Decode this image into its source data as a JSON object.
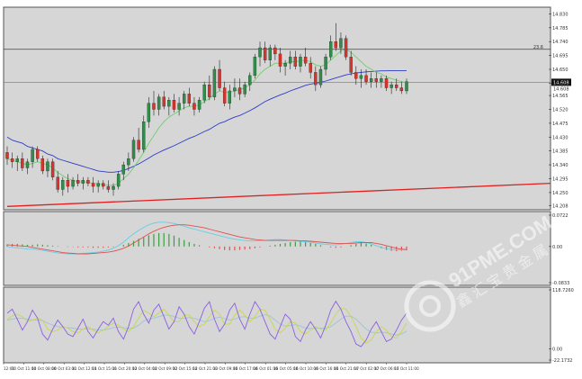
{
  "chart_data": [
    {
      "type": "candlestick",
      "panel": "main price",
      "y_ticks": [
        "14.830",
        "14.785",
        "14.740",
        "14.695",
        "14.650",
        "14.605",
        "14.565",
        "14.520",
        "14.475",
        "14.430",
        "14.385",
        "14.340",
        "14.295",
        "14.250",
        "14.208"
      ],
      "ylim": [
        14.2,
        14.84
      ],
      "hline_label": "23.6",
      "hline_value": 14.715,
      "last_price_label": "14.608",
      "last_price_value": 14.608,
      "secondary_price_label": "14.608",
      "ohlc": [
        [
          14.38,
          14.4,
          14.34,
          14.36
        ],
        [
          14.36,
          14.38,
          14.33,
          14.35
        ],
        [
          14.35,
          14.37,
          14.32,
          14.36
        ],
        [
          14.36,
          14.38,
          14.32,
          14.33
        ],
        [
          14.33,
          14.36,
          14.31,
          14.35
        ],
        [
          14.35,
          14.4,
          14.33,
          14.39
        ],
        [
          14.39,
          14.4,
          14.35,
          14.36
        ],
        [
          14.36,
          14.37,
          14.31,
          14.32
        ],
        [
          14.32,
          14.36,
          14.3,
          14.35
        ],
        [
          14.35,
          14.36,
          14.29,
          14.3
        ],
        [
          14.3,
          14.32,
          14.25,
          14.26
        ],
        [
          14.26,
          14.3,
          14.24,
          14.29
        ],
        [
          14.29,
          14.31,
          14.25,
          14.27
        ],
        [
          14.27,
          14.3,
          14.26,
          14.29
        ],
        [
          14.29,
          14.31,
          14.27,
          14.28
        ],
        [
          14.28,
          14.3,
          14.26,
          14.29
        ],
        [
          14.29,
          14.3,
          14.27,
          14.28
        ],
        [
          14.28,
          14.3,
          14.25,
          14.27
        ],
        [
          14.27,
          14.29,
          14.25,
          14.28
        ],
        [
          14.28,
          14.29,
          14.26,
          14.27
        ],
        [
          14.27,
          14.29,
          14.25,
          14.26
        ],
        [
          14.26,
          14.28,
          14.24,
          14.27
        ],
        [
          14.27,
          14.32,
          14.26,
          14.31
        ],
        [
          14.31,
          14.35,
          14.29,
          14.34
        ],
        [
          14.34,
          14.38,
          14.32,
          14.36
        ],
        [
          14.36,
          14.43,
          14.35,
          14.42
        ],
        [
          14.42,
          14.46,
          14.38,
          14.39
        ],
        [
          14.39,
          14.5,
          14.38,
          14.48
        ],
        [
          14.48,
          14.56,
          14.46,
          14.54
        ],
        [
          14.54,
          14.58,
          14.5,
          14.52
        ],
        [
          14.52,
          14.57,
          14.5,
          14.56
        ],
        [
          14.56,
          14.58,
          14.52,
          14.53
        ],
        [
          14.53,
          14.56,
          14.5,
          14.55
        ],
        [
          14.55,
          14.57,
          14.51,
          14.52
        ],
        [
          14.52,
          14.56,
          14.5,
          14.54
        ],
        [
          14.54,
          14.58,
          14.52,
          14.57
        ],
        [
          14.57,
          14.59,
          14.53,
          14.54
        ],
        [
          14.54,
          14.56,
          14.5,
          14.52
        ],
        [
          14.52,
          14.56,
          14.51,
          14.55
        ],
        [
          14.55,
          14.61,
          14.54,
          14.6
        ],
        [
          14.6,
          14.63,
          14.55,
          14.56
        ],
        [
          14.56,
          14.66,
          14.55,
          14.65
        ],
        [
          14.65,
          14.68,
          14.58,
          14.59
        ],
        [
          14.59,
          14.61,
          14.53,
          14.54
        ],
        [
          14.54,
          14.6,
          14.52,
          14.58
        ],
        [
          14.58,
          14.62,
          14.56,
          14.59
        ],
        [
          14.59,
          14.62,
          14.55,
          14.57
        ],
        [
          14.57,
          14.61,
          14.56,
          14.6
        ],
        [
          14.6,
          14.64,
          14.58,
          14.63
        ],
        [
          14.63,
          14.7,
          14.62,
          14.69
        ],
        [
          14.69,
          14.74,
          14.66,
          14.72
        ],
        [
          14.72,
          14.74,
          14.67,
          14.68
        ],
        [
          14.68,
          14.73,
          14.66,
          14.72
        ],
        [
          14.72,
          14.73,
          14.68,
          14.7
        ],
        [
          14.7,
          14.72,
          14.64,
          14.66
        ],
        [
          14.66,
          14.68,
          14.63,
          14.67
        ],
        [
          14.67,
          14.71,
          14.65,
          14.69
        ],
        [
          14.69,
          14.71,
          14.65,
          14.66
        ],
        [
          14.66,
          14.7,
          14.64,
          14.69
        ],
        [
          14.69,
          14.72,
          14.66,
          14.67
        ],
        [
          14.67,
          14.69,
          14.62,
          14.64
        ],
        [
          14.64,
          14.66,
          14.58,
          14.6
        ],
        [
          14.6,
          14.66,
          14.59,
          14.65
        ],
        [
          14.65,
          14.7,
          14.63,
          14.69
        ],
        [
          14.69,
          14.76,
          14.68,
          14.74
        ],
        [
          14.74,
          14.8,
          14.71,
          14.72
        ],
        [
          14.72,
          14.77,
          14.7,
          14.75
        ],
        [
          14.75,
          14.76,
          14.68,
          14.69
        ],
        [
          14.69,
          14.71,
          14.63,
          14.64
        ],
        [
          14.64,
          14.66,
          14.6,
          14.62
        ],
        [
          14.62,
          14.65,
          14.59,
          14.63
        ],
        [
          14.63,
          14.65,
          14.6,
          14.61
        ],
        [
          14.61,
          14.64,
          14.59,
          14.62
        ],
        [
          14.62,
          14.64,
          14.59,
          14.61
        ],
        [
          14.61,
          14.63,
          14.59,
          14.62
        ],
        [
          14.62,
          14.63,
          14.58,
          14.59
        ],
        [
          14.59,
          14.61,
          14.57,
          14.6
        ],
        [
          14.6,
          14.62,
          14.58,
          14.59
        ],
        [
          14.59,
          14.61,
          14.57,
          14.58
        ],
        [
          14.58,
          14.62,
          14.57,
          14.61
        ]
      ],
      "ma_fast": [
        14.36,
        14.355,
        14.35,
        14.345,
        14.34,
        14.345,
        14.35,
        14.345,
        14.34,
        14.33,
        14.315,
        14.305,
        14.295,
        14.29,
        14.285,
        14.285,
        14.283,
        14.28,
        14.278,
        14.276,
        14.274,
        14.273,
        14.28,
        14.295,
        14.31,
        14.33,
        14.355,
        14.38,
        14.41,
        14.435,
        14.46,
        14.48,
        14.495,
        14.505,
        14.515,
        14.525,
        14.53,
        14.53,
        14.535,
        14.545,
        14.555,
        14.57,
        14.58,
        14.575,
        14.575,
        14.58,
        14.585,
        14.59,
        14.6,
        14.615,
        14.635,
        14.65,
        14.66,
        14.67,
        14.67,
        14.67,
        14.675,
        14.675,
        14.678,
        14.68,
        14.675,
        14.665,
        14.66,
        14.665,
        14.68,
        14.695,
        14.71,
        14.715,
        14.705,
        14.69,
        14.675,
        14.66,
        14.65,
        14.64,
        14.635,
        14.625,
        14.62,
        14.615,
        14.61,
        14.608
      ],
      "ma_slow": [
        14.43,
        14.42,
        14.415,
        14.41,
        14.4,
        14.395,
        14.39,
        14.385,
        14.375,
        14.37,
        14.36,
        14.355,
        14.35,
        14.345,
        14.34,
        14.335,
        14.33,
        14.325,
        14.32,
        14.318,
        14.316,
        14.316,
        14.318,
        14.322,
        14.328,
        14.335,
        14.343,
        14.352,
        14.362,
        14.372,
        14.38,
        14.388,
        14.395,
        14.402,
        14.41,
        14.418,
        14.426,
        14.432,
        14.44,
        14.448,
        14.455,
        14.465,
        14.475,
        14.48,
        14.488,
        14.495,
        14.5,
        14.508,
        14.516,
        14.525,
        14.535,
        14.545,
        14.553,
        14.56,
        14.567,
        14.573,
        14.58,
        14.586,
        14.592,
        14.598,
        14.602,
        14.605,
        14.608,
        14.612,
        14.617,
        14.622,
        14.627,
        14.632,
        14.635,
        14.638,
        14.64,
        14.642,
        14.643,
        14.644,
        14.645,
        14.645,
        14.646,
        14.646,
        14.646,
        14.646
      ],
      "trendline": {
        "from": [
          0,
          14.205
        ],
        "to": [
          110,
          14.28
        ]
      }
    },
    {
      "type": "macd",
      "panel": "macd",
      "y_ticks": [
        "0.0722",
        "0.00",
        "-0.0833"
      ],
      "ylim": [
        -0.0833,
        0.0722
      ],
      "histogram": [
        0.005,
        0.006,
        0.006,
        0.005,
        0.004,
        0.004,
        0.005,
        0.004,
        0.003,
        0.002,
        0.001,
        0.0,
        -0.001,
        -0.001,
        -0.002,
        -0.002,
        -0.002,
        -0.003,
        -0.003,
        -0.003,
        -0.002,
        -0.001,
        0.0,
        0.004,
        0.008,
        0.013,
        0.018,
        0.022,
        0.026,
        0.029,
        0.031,
        0.031,
        0.029,
        0.025,
        0.02,
        0.015,
        0.01,
        0.006,
        0.003,
        0.0,
        -0.002,
        -0.004,
        -0.006,
        -0.008,
        -0.009,
        -0.009,
        -0.008,
        -0.007,
        -0.006,
        -0.004,
        -0.002,
        0.0,
        0.002,
        0.004,
        0.006,
        0.008,
        0.01,
        0.011,
        0.012,
        0.01,
        0.008,
        0.006,
        0.003,
        0.0,
        -0.002,
        -0.003,
        -0.002,
        0.0,
        0.003,
        0.006,
        0.008,
        0.007,
        0.004,
        0.0,
        -0.004,
        -0.008,
        -0.01,
        -0.011,
        -0.01,
        -0.009
      ],
      "macd_line": [
        0.0,
        -0.002,
        -0.003,
        -0.004,
        -0.006,
        -0.006,
        -0.007,
        -0.009,
        -0.011,
        -0.013,
        -0.015,
        -0.016,
        -0.017,
        -0.017,
        -0.017,
        -0.016,
        -0.015,
        -0.014,
        -0.013,
        -0.011,
        -0.008,
        -0.004,
        0.002,
        0.01,
        0.02,
        0.029,
        0.037,
        0.044,
        0.05,
        0.054,
        0.056,
        0.056,
        0.055,
        0.053,
        0.05,
        0.047,
        0.043,
        0.04,
        0.037,
        0.034,
        0.031,
        0.028,
        0.025,
        0.022,
        0.019,
        0.017,
        0.015,
        0.014,
        0.013,
        0.013,
        0.013,
        0.014,
        0.015,
        0.016,
        0.016,
        0.015,
        0.014,
        0.013,
        0.012,
        0.011,
        0.01,
        0.008,
        0.006,
        0.005,
        0.004,
        0.004,
        0.005,
        0.007,
        0.009,
        0.011,
        0.011,
        0.009,
        0.006,
        0.002,
        -0.002,
        -0.005,
        -0.007,
        -0.008,
        -0.008,
        -0.007
      ],
      "signal_line": [
        0.004,
        0.003,
        0.002,
        0.001,
        0.0,
        -0.002,
        -0.004,
        -0.006,
        -0.008,
        -0.01,
        -0.012,
        -0.014,
        -0.015,
        -0.016,
        -0.017,
        -0.017,
        -0.017,
        -0.016,
        -0.015,
        -0.014,
        -0.013,
        -0.011,
        -0.008,
        -0.004,
        0.001,
        0.008,
        0.015,
        0.022,
        0.029,
        0.035,
        0.04,
        0.044,
        0.047,
        0.049,
        0.05,
        0.05,
        0.049,
        0.047,
        0.045,
        0.043,
        0.04,
        0.037,
        0.034,
        0.031,
        0.028,
        0.025,
        0.022,
        0.02,
        0.018,
        0.016,
        0.015,
        0.014,
        0.014,
        0.014,
        0.014,
        0.014,
        0.014,
        0.014,
        0.013,
        0.013,
        0.012,
        0.011,
        0.01,
        0.009,
        0.008,
        0.007,
        0.007,
        0.007,
        0.007,
        0.008,
        0.009,
        0.009,
        0.009,
        0.007,
        0.005,
        0.002,
        -0.001,
        -0.004,
        -0.006,
        -0.007
      ]
    },
    {
      "type": "stochastic",
      "panel": "oscillator",
      "y_ticks": [
        "118.7260",
        "0.00",
        "-22.1732"
      ],
      "ylim": [
        -22.1732,
        118.726
      ],
      "k_line": [
        72,
        80,
        60,
        38,
        55,
        78,
        62,
        30,
        18,
        40,
        58,
        45,
        30,
        25,
        42,
        60,
        35,
        22,
        40,
        55,
        48,
        62,
        35,
        20,
        45,
        80,
        95,
        70,
        52,
        78,
        90,
        65,
        40,
        55,
        85,
        70,
        45,
        30,
        55,
        82,
        95,
        60,
        35,
        50,
        78,
        92,
        60,
        40,
        70,
        95,
        80,
        55,
        30,
        20,
        45,
        70,
        60,
        25,
        15,
        38,
        55,
        40,
        22,
        48,
        78,
        96,
        80,
        55,
        35,
        10,
        5,
        18,
        40,
        55,
        35,
        15,
        20,
        38,
        58,
        72
      ],
      "d_line": [
        60,
        66,
        70,
        65,
        55,
        58,
        62,
        58,
        40,
        35,
        38,
        45,
        42,
        35,
        32,
        40,
        45,
        38,
        33,
        38,
        45,
        52,
        48,
        40,
        35,
        45,
        62,
        78,
        72,
        65,
        72,
        80,
        68,
        55,
        55,
        68,
        68,
        55,
        45,
        50,
        65,
        78,
        70,
        50,
        50,
        68,
        78,
        68,
        55,
        65,
        80,
        78,
        60,
        40,
        32,
        42,
        55,
        52,
        35,
        30,
        38,
        45,
        40,
        38,
        52,
        70,
        82,
        80,
        65,
        45,
        22,
        12,
        18,
        35,
        45,
        38,
        25,
        22,
        35,
        52
      ],
      "signal_line": [
        58,
        60,
        62,
        62,
        60,
        58,
        58,
        57,
        52,
        48,
        45,
        44,
        43,
        42,
        40,
        40,
        41,
        40,
        38,
        38,
        40,
        43,
        44,
        43,
        41,
        42,
        48,
        56,
        60,
        62,
        65,
        68,
        68,
        65,
        62,
        62,
        63,
        62,
        58,
        55,
        57,
        62,
        64,
        61,
        58,
        60,
        64,
        65,
        62,
        62,
        66,
        69,
        66,
        58,
        50,
        46,
        47,
        49,
        46,
        42,
        41,
        42,
        42,
        42,
        45,
        52,
        60,
        66,
        66,
        60,
        50,
        40,
        34,
        32,
        34,
        33,
        30,
        28,
        30,
        36
      ],
      "x_tick_labels": [
        "12:00",
        "10 Oct 11:00",
        "10 Oct 08:00",
        "10 Oct 03:00",
        "11 Oct 12:00",
        "11 Oct 15:00",
        "11 Oct 20:00",
        "12 Oct 04:00",
        "12 Oct 09:00",
        "12 Oct 15:00",
        "12 Oct 21:00",
        "13 Oct 09:00",
        "16 Oct 17:00",
        "16 Oct 01:00",
        "16 Oct 05:00",
        "16 Oct 10:00",
        "16 Oct 16:00",
        "16 Oct 21:00",
        "17 Oct 02:00",
        "17 Oct 06:00",
        "17 Oct 11:00"
      ]
    }
  ],
  "watermark": {
    "brand": "91PME.COM",
    "tagline": "鑫汇宝贵金属"
  },
  "colors": {
    "panel_bg": "#d6d6d6",
    "bull_candle": "#2f8f4a",
    "bear_candle": "#d9342b",
    "ma_fast": "#6fd06a",
    "ma_slow": "#2e3cc7",
    "trendline": "#e02020",
    "macd_hist": "#3aa040",
    "macd_hist_neg": "#e05050",
    "macd_line": "#5fd0e8",
    "macd_signal": "#e05050",
    "stoch_k": "#8b5fe0",
    "stoch_d": "#c9d84a",
    "stoch_signal": "#9ec4d6"
  }
}
